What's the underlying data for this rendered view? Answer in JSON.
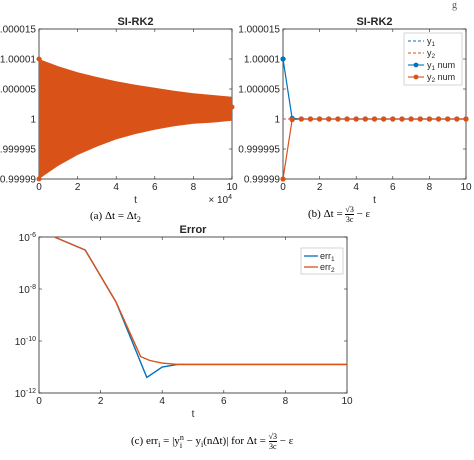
{
  "chart_data": [
    {
      "id": "a",
      "type": "line",
      "title": "SI-RK2",
      "xlabel": "t",
      "x_exponent": "× 10^4",
      "xlim": [
        0,
        10
      ],
      "ylim": [
        0.99999,
        1.000015
      ],
      "xticks": [
        0,
        2,
        4,
        6,
        8,
        10
      ],
      "yticks": [
        0.99999,
        0.999995,
        1,
        1.000005,
        1.00001,
        1.000015
      ],
      "ytick_labels": [
        "0.99999",
        "0.999995",
        "1",
        "1.000005",
        "1.00001",
        "1.000015"
      ],
      "grid": false,
      "series": [
        {
          "name": "y_2",
          "style": "dashed",
          "color": "#d95319",
          "x": [
            0,
            10
          ],
          "y": [
            1,
            1
          ]
        },
        {
          "name": "y_2 num",
          "style": "oscillation-envelope",
          "color": "#d95319",
          "x": [
            0,
            1,
            2,
            3,
            4,
            5,
            6,
            7,
            8,
            9,
            10
          ],
          "upper": [
            1.00001,
            1.0000088,
            1.0000078,
            1.000007,
            1.0000063,
            1.0000057,
            1.0000052,
            1.0000047,
            1.0000043,
            1.000004,
            1.0000037
          ],
          "lower": [
            0.99999,
            0.9999922,
            0.999994,
            0.9999954,
            0.9999966,
            0.9999975,
            0.9999982,
            0.9999988,
            0.9999992,
            0.9999994,
            0.9999997
          ]
        }
      ],
      "caption": "(a) Δt = Δt",
      "caption_sub": "2"
    },
    {
      "id": "b",
      "type": "line",
      "title": "SI-RK2",
      "xlabel": "t",
      "xlim": [
        0,
        10
      ],
      "ylim": [
        0.99999,
        1.000015
      ],
      "xticks": [
        0,
        2,
        4,
        6,
        8,
        10
      ],
      "yticks": [
        0.99999,
        0.999995,
        1,
        1.000005,
        1.00001,
        1.000015
      ],
      "ytick_labels": [
        "0.99999",
        "0.999995",
        "1",
        "1.000005",
        "1.00001",
        "1.000015"
      ],
      "legend": [
        "y_1",
        "y_2",
        "y_1 num",
        "y_2 num"
      ],
      "legend_position": "top-right",
      "grid": false,
      "series": [
        {
          "name": "y_1",
          "style": "dashed",
          "color": "#0072bd",
          "x": [
            0,
            10
          ],
          "y": [
            1,
            1
          ]
        },
        {
          "name": "y_2",
          "style": "dashed",
          "color": "#d95319",
          "x": [
            0,
            10
          ],
          "y": [
            1,
            1
          ]
        },
        {
          "name": "y_1 num",
          "style": "solid-markers",
          "color": "#0072bd",
          "x": [
            0,
            0.5,
            1,
            1.5,
            2,
            2.5,
            3,
            3.5,
            4,
            4.5,
            5,
            5.5,
            6,
            6.5,
            7,
            7.5,
            8,
            8.5,
            9,
            9.5,
            10
          ],
          "y": [
            1.00001,
            1.0000001,
            1,
            1,
            1,
            1,
            1,
            1,
            1,
            1,
            1,
            1,
            1,
            1,
            1,
            1,
            1,
            1,
            1,
            1,
            1
          ]
        },
        {
          "name": "y_2 num",
          "style": "solid-markers",
          "color": "#d95319",
          "x": [
            0,
            0.5,
            1,
            1.5,
            2,
            2.5,
            3,
            3.5,
            4,
            4.5,
            5,
            5.5,
            6,
            6.5,
            7,
            7.5,
            8,
            8.5,
            9,
            9.5,
            10
          ],
          "y": [
            0.99999,
            0.9999999,
            1,
            1,
            1,
            1,
            1,
            1,
            1,
            1,
            1,
            1,
            1,
            1,
            1,
            1,
            1,
            1,
            1,
            1,
            1
          ]
        }
      ],
      "caption": "(b) Δt = √3/3c − ε"
    },
    {
      "id": "c",
      "type": "line",
      "title": "Error",
      "xlabel": "t",
      "xlim": [
        0,
        10
      ],
      "ylim_log10": [
        -12,
        -6
      ],
      "xticks": [
        0,
        2,
        4,
        6,
        8,
        10
      ],
      "yticks_exp": [
        -6,
        -8,
        -10,
        -12
      ],
      "ytick_base": "10",
      "log_scale_y": true,
      "legend": [
        "err_1",
        "err_2"
      ],
      "legend_position": "top-right",
      "grid": false,
      "series": [
        {
          "name": "err_1",
          "color": "#0072bd",
          "x": [
            0.5,
            1.5,
            2.5,
            3.5,
            4.0,
            4.5,
            10
          ],
          "log10_y": [
            -6,
            -6.5,
            -8.5,
            -11.4,
            -11,
            -10.9,
            -10.9
          ]
        },
        {
          "name": "err_2",
          "color": "#d95319",
          "x": [
            0.5,
            1.5,
            2.5,
            3.3,
            3.6,
            4.0,
            4.5,
            10
          ],
          "log10_y": [
            -6,
            -6.5,
            -8.5,
            -10.6,
            -10.75,
            -10.85,
            -10.9,
            -10.9
          ]
        }
      ],
      "caption": "(c) err_i = |y_i^n − y_i(nΔt)| for Δt = √3/3c − ε"
    }
  ],
  "captions": {
    "a_main": "(a) Δt = Δt",
    "a_sub": "2",
    "b_main": "(b) Δt = ",
    "b_frac_num": "√3",
    "b_frac_den": "3c",
    "b_tail": " − ε",
    "c_main": "(c) err",
    "c_sub": "i",
    "c_mid": " = |y",
    "c_sup": "n",
    "c_sub2": "i",
    "c_rest": " − y",
    "c_sub3": "i",
    "c_rest2": "(nΔt)| for Δt = ",
    "c_frac_num": "√3",
    "c_frac_den": "3c",
    "c_tail": " − ε"
  },
  "colors": {
    "blue": "#0072bd",
    "orange": "#d95319",
    "axis": "#262626"
  },
  "header_glyph": "g"
}
